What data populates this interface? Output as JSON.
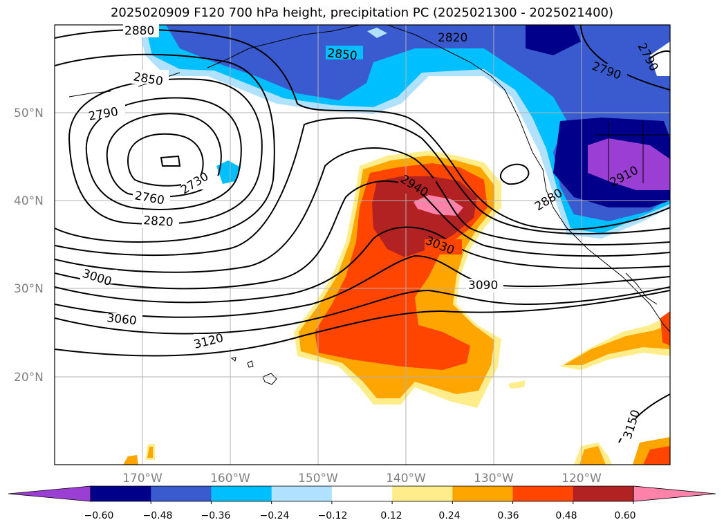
{
  "title": "2025020909 F120 700 hPa height, precipitation PC (2025021300 - 2025021400)",
  "map": {
    "latitude_labels": [
      "50°N",
      "40°N",
      "30°N",
      "20°N"
    ],
    "longitude_labels": [
      "170°W",
      "160°W",
      "150°W",
      "140°W",
      "130°W",
      "120°W"
    ],
    "height_contour_labels": [
      "2880",
      "2820",
      "2850",
      "2790",
      "2850",
      "2790",
      "2730",
      "2760",
      "2820",
      "2940",
      "3030",
      "2880",
      "2910",
      "3000",
      "3060",
      "3090",
      "3120",
      "3150"
    ]
  },
  "colorbar": {
    "ticks": [
      "−0.60",
      "−0.48",
      "−0.36",
      "−0.24",
      "−0.12",
      "0.12",
      "0.24",
      "0.36",
      "0.48",
      "0.60"
    ],
    "colors": [
      "#9b3fd4",
      "#00008b",
      "#3a5bd0",
      "#00bfff",
      "#b0e2ff",
      "#ffffff",
      "#ffec8b",
      "#ffa500",
      "#ff4500",
      "#b22222",
      "#ff82ab"
    ]
  }
}
